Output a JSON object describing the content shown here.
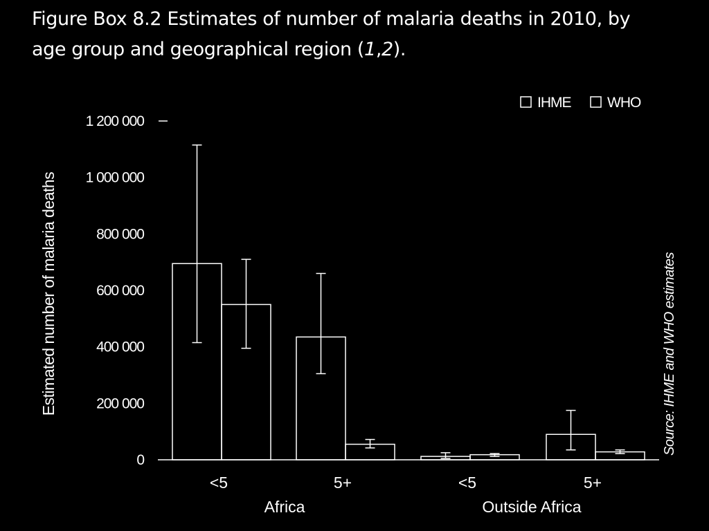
{
  "figure": {
    "title_line1": "Figure Box 8.2 Estimates of number of malaria deaths in 2010, by",
    "title_line2_text": "age group and geographical region (",
    "title_line2_ref1": "1",
    "title_line2_sep": ",",
    "title_line2_ref2": "2",
    "title_line2_end": ").",
    "source": "Source: IHME and WHO estimates"
  },
  "chart_data": {
    "type": "bar",
    "title": "Figure Box 8.2 Estimates of number of malaria deaths in 2010, by age group and geographical region (1,2).",
    "ylabel": "Estimated number of malaria deaths",
    "ylim": [
      0,
      1200000
    ],
    "yticks": [
      0,
      200000,
      400000,
      600000,
      800000,
      1000000,
      1200000
    ],
    "ytick_labels": [
      "0",
      "200 000",
      "400 000",
      "600 000",
      "800 000",
      "1 000 000",
      "1 200 000"
    ],
    "categories": [
      "<5",
      "5+",
      "<5",
      "5+"
    ],
    "groups": [
      {
        "label": "Africa",
        "categories": [
          "<5",
          "5+"
        ]
      },
      {
        "label": "Outside Africa",
        "categories": [
          "<5",
          "5+"
        ]
      }
    ],
    "legend": {
      "position": "top-right",
      "entries": [
        "IHME",
        "WHO"
      ]
    },
    "series": [
      {
        "name": "IHME",
        "values": [
          695000,
          435000,
          12000,
          90000
        ],
        "error_low": [
          415000,
          305000,
          5000,
          35000
        ],
        "error_high": [
          1115000,
          660000,
          25000,
          175000
        ]
      },
      {
        "name": "WHO",
        "values": [
          550000,
          55000,
          18000,
          28000
        ],
        "error_low": [
          395000,
          42000,
          12000,
          22000
        ],
        "error_high": [
          710000,
          72000,
          22000,
          35000
        ]
      }
    ],
    "grid": false
  }
}
